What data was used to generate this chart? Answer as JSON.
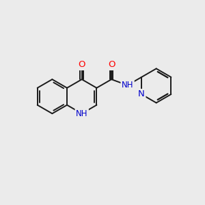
{
  "background_color": "#ebebeb",
  "bond_color": "#1a1a1a",
  "bond_width": 1.4,
  "atom_colors": {
    "O": "#ff0000",
    "N": "#0000cc",
    "C": "#1a1a1a",
    "H": "#1a1a1a"
  },
  "font_size": 8.5,
  "R": 0.85
}
